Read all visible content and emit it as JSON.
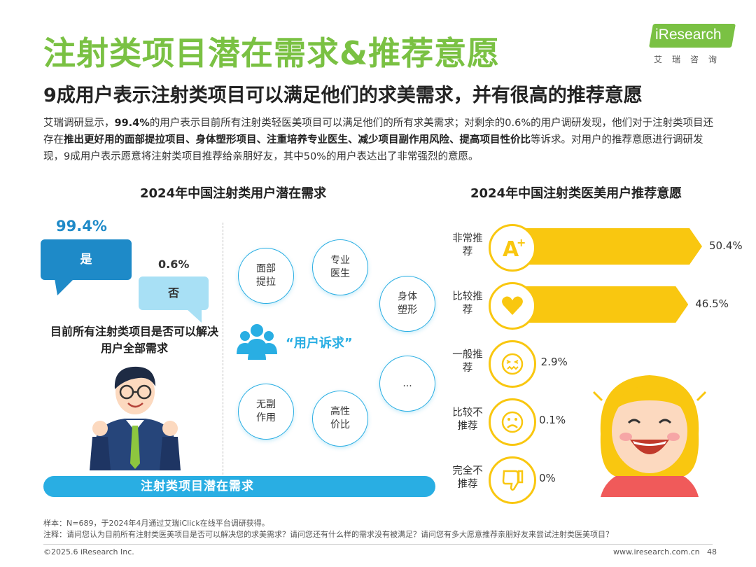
{
  "title": "注射类项目潜在需求&推荐意愿",
  "subtitle": "9成用户表示注射类项目可以满足他们的求美需求，并有很高的推荐意愿",
  "logo": {
    "brand": "iResearch",
    "sub": "艾瑞咨询"
  },
  "intro": {
    "p1": "艾瑞调研显示，",
    "b1": "99.4%",
    "p2": "的用户表示目前所有注射类轻医美项目可以满足他们的所有求美需求；对剩余的0.6%的用户调研发现，他们对于注射类项目还存在",
    "b2": "推出更好用的面部提拉项目、身体塑形项目、注重培养专业医生、减少项目副作用风险、提高项目性价比",
    "p3": "等诉求。对用户的推荐意愿进行调研发现，9成用户表示愿意将注射类项目推荐给亲朋好友，其中50%的用户表达出了非常强烈的意愿。"
  },
  "left_chart": {
    "title": "2024年中国注射类用户潜在需求",
    "yes_pct": "99.4%",
    "yes_label": "是",
    "no_pct": "0.6%",
    "no_label": "否",
    "question": "目前所有注射类项目是否可以解决用户全部需求",
    "center_label": "“用户诉求”",
    "demands": [
      "面部提拉",
      "专业医生",
      "身体塑形",
      "无副作用",
      "高性价比",
      "..."
    ],
    "banner": "注射类项目潜在需求"
  },
  "chart_data": {
    "type": "bar",
    "title": "2024年中国注射类医美用户推荐意愿",
    "categories": [
      "非常推荐",
      "比较推荐",
      "一般推荐",
      "比较不推荐",
      "完全不推荐"
    ],
    "values": [
      50.4,
      46.5,
      2.9,
      0.1,
      0
    ],
    "value_labels": [
      "50.4%",
      "46.5%",
      "2.9%",
      "0.1%",
      "0%"
    ],
    "unit": "%",
    "bar_color": "#f9c710",
    "icons": [
      "a-plus-icon",
      "heart-icon",
      "neutral-face-icon",
      "sad-face-icon",
      "thumbs-down-icon"
    ]
  },
  "notes": {
    "sample": "样本：N=689，于2024年4月通过艾瑞iClick在线平台调研获得。",
    "note": "注释：请问您认为目前所有注射类医美项目是否可以解决您的求美需求？请问您还有什么样的需求没有被满足？请问您有多大愿意推荐亲朋好友来尝试注射类医美项目？"
  },
  "footer": {
    "left": "©2025.6 iResearch Inc.",
    "site": "www.iresearch.com.cn",
    "page": "48"
  },
  "colors": {
    "green": "#7ac143",
    "blue": "#29aee3",
    "dark_blue": "#1e8ac8",
    "light_blue": "#a8e0f5",
    "yellow": "#f9c710"
  }
}
